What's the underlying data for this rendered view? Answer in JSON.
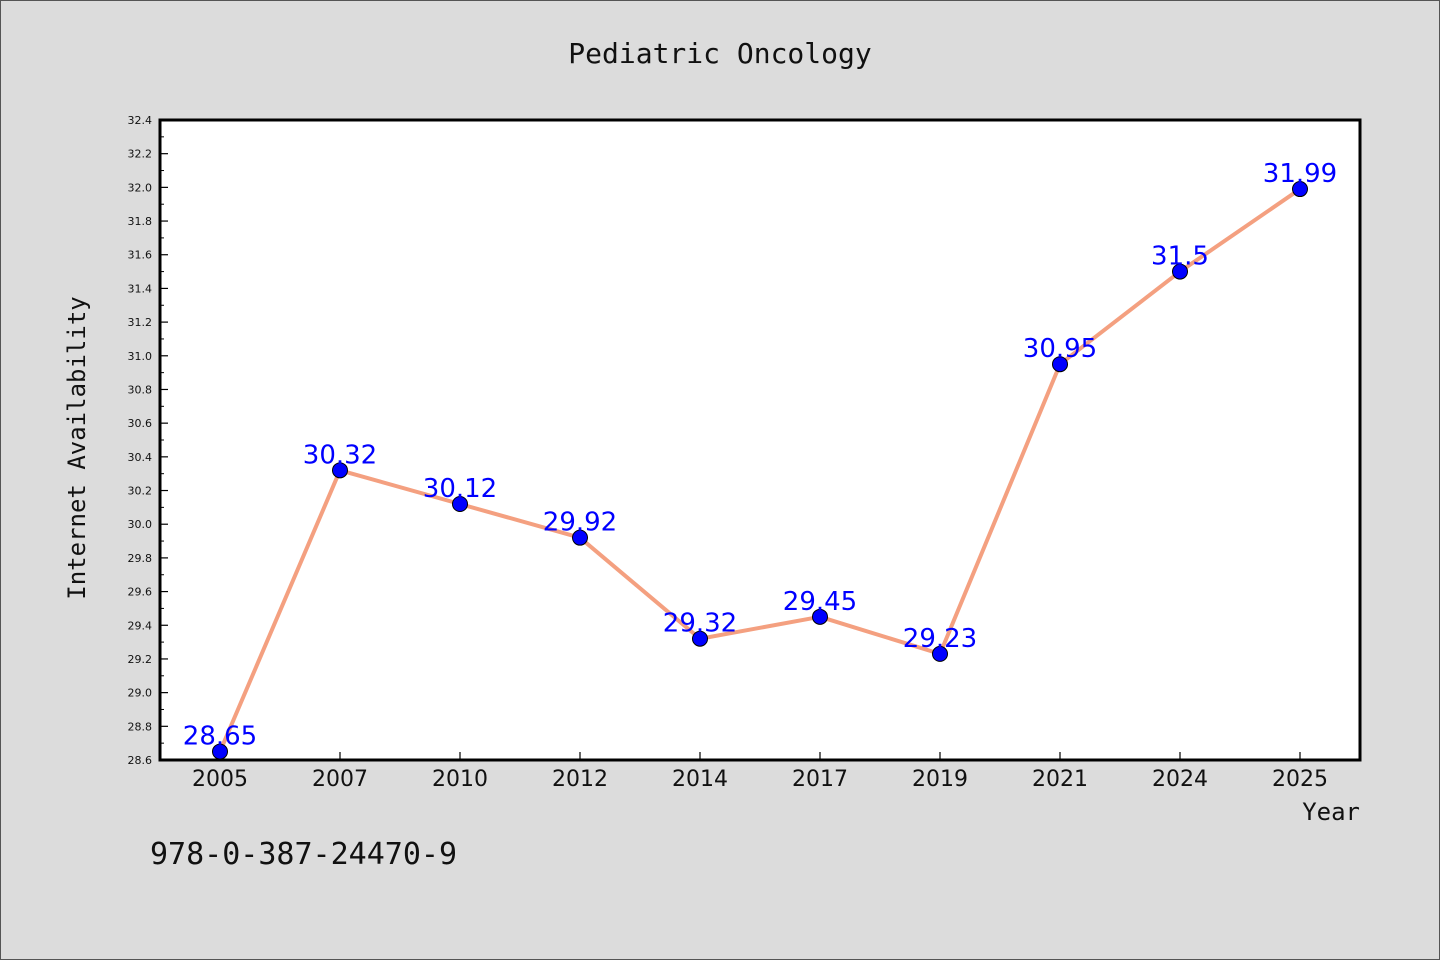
{
  "chart_data": {
    "type": "line",
    "title": "Pediatric Oncology",
    "xlabel": "Year",
    "ylabel": "Internet Availability",
    "categories": [
      "2005",
      "2007",
      "2010",
      "2012",
      "2014",
      "2017",
      "2019",
      "2021",
      "2024",
      "2025"
    ],
    "series": [
      {
        "values": [
          28.65,
          30.32,
          30.12,
          29.92,
          29.32,
          29.45,
          29.23,
          30.95,
          31.5,
          31.99
        ],
        "labels": [
          "28.65",
          "30.32",
          "30.12",
          "29.92",
          "29.32",
          "29.45",
          "29.23",
          "30.95",
          "31.5",
          "31.99"
        ],
        "line_color": "#f4a080",
        "marker_color": "#0000ff"
      }
    ],
    "ylim": [
      28.6,
      32.4
    ],
    "yticks": [
      "28.6",
      "28.8",
      "29.0",
      "29.2",
      "29.4",
      "29.6",
      "29.8",
      "30.0",
      "30.2",
      "30.4",
      "30.6",
      "30.8",
      "31.0",
      "31.2",
      "31.4",
      "31.6",
      "31.8",
      "32.0",
      "32.2",
      "32.4"
    ],
    "grid": false,
    "background": "#dcdcdc",
    "plot_background": "#ffffff"
  },
  "footer": {
    "isbn": "978-0-387-24470-9"
  }
}
